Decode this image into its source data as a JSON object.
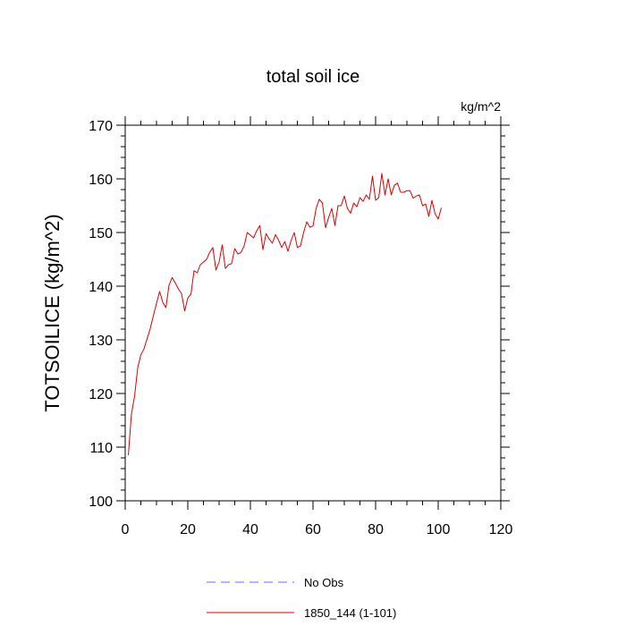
{
  "chart_data": {
    "type": "line",
    "title": "total soil ice",
    "units": "kg/m^2",
    "ylabel": "TOTSOILICE  (kg/m^2)",
    "xlabel": "",
    "xlim": [
      0,
      120
    ],
    "ylim": [
      100,
      170
    ],
    "xticks": [
      0,
      20,
      40,
      60,
      80,
      100,
      120
    ],
    "yticks": [
      100,
      110,
      120,
      130,
      140,
      150,
      160,
      170
    ],
    "grid": false,
    "legend_position": "bottom",
    "legend": [
      {
        "label": "No Obs",
        "color": "#6a6aff",
        "style": "dashed"
      },
      {
        "label": "1850_144 (1-101)",
        "color": "#dd0000",
        "style": "solid"
      }
    ],
    "series": [
      {
        "name": "1850_144 (1-101)",
        "color": "#dd0000",
        "x": [
          1,
          2,
          3,
          4,
          5,
          6,
          7,
          8,
          9,
          10,
          11,
          12,
          13,
          14,
          15,
          16,
          17,
          18,
          19,
          20,
          21,
          22,
          23,
          24,
          25,
          26,
          27,
          28,
          29,
          30,
          31,
          32,
          33,
          34,
          35,
          36,
          37,
          38,
          39,
          40,
          41,
          42,
          43,
          44,
          45,
          46,
          47,
          48,
          49,
          50,
          51,
          52,
          53,
          54,
          55,
          56,
          57,
          58,
          59,
          60,
          61,
          62,
          63,
          64,
          65,
          66,
          67,
          68,
          69,
          70,
          71,
          72,
          73,
          74,
          75,
          76,
          77,
          78,
          79,
          80,
          81,
          82,
          83,
          84,
          85,
          86,
          87,
          88,
          89,
          90,
          91,
          92,
          93,
          94,
          95,
          96,
          97,
          98,
          99,
          100,
          101
        ],
        "y": [
          108.5,
          116.2,
          119.5,
          124.8,
          127.2,
          128.3,
          130.2,
          132.1,
          134.5,
          136.8,
          139.0,
          137.0,
          136.0,
          140.2,
          141.6,
          140.6,
          139.5,
          138.6,
          135.4,
          137.8,
          138.5,
          142.9,
          142.5,
          144.0,
          144.5,
          145.0,
          146.3,
          147.2,
          143.0,
          144.5,
          147.7,
          143.3,
          144.0,
          144.2,
          147.0,
          146.0,
          146.3,
          147.5,
          150.0,
          149.5,
          149.0,
          150.3,
          151.3,
          146.8,
          149.8,
          148.8,
          148.0,
          149.6,
          148.6,
          147.2,
          148.3,
          146.5,
          148.5,
          150.0,
          147.2,
          147.5,
          150.0,
          152.0,
          151.0,
          151.2,
          154.5,
          156.2,
          155.5,
          150.9,
          152.8,
          154.5,
          151.3,
          155.0,
          155.0,
          156.8,
          154.5,
          153.6,
          155.5,
          154.8,
          156.5,
          155.8,
          157.0,
          156.2,
          160.5,
          156.0,
          156.5,
          161.0,
          157.0,
          160.0,
          157.0,
          158.8,
          159.2,
          157.5,
          157.5,
          157.8,
          157.8,
          156.4,
          156.8,
          157.0,
          155.0,
          155.3,
          153.0,
          156.0,
          153.5,
          152.5,
          154.6
        ]
      }
    ]
  }
}
